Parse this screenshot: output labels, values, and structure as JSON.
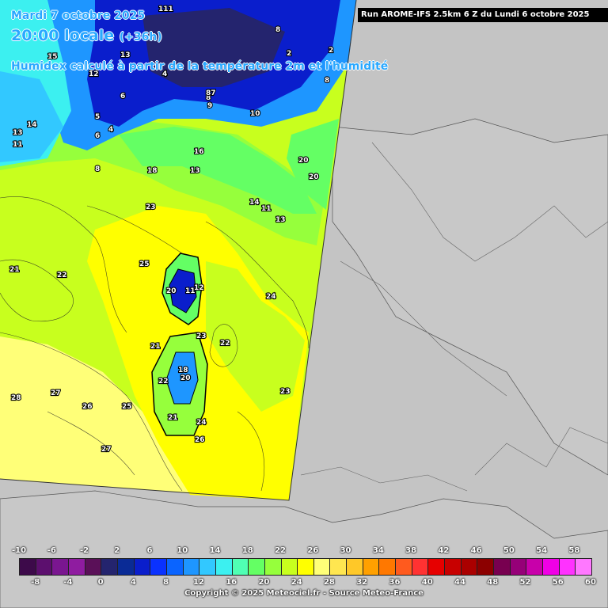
{
  "header": {
    "run_info": "Run AROME-IFS 2.5km 6 Z du Lundi 6 octobre 2025",
    "date": "Mardi 7 octobre 2025",
    "time": "20:00 locale",
    "offset": "(+36h)",
    "description": "Humidex calculé à partir de la température 2m et l'humidité"
  },
  "map_labels": [
    "111",
    "8",
    "2",
    "8",
    "15",
    "13",
    "12",
    "4",
    "6",
    "8",
    "2",
    "87",
    "9",
    "10",
    "14",
    "13",
    "11",
    "5",
    "4",
    "6",
    "16",
    "20",
    "20",
    "8",
    "13",
    "23",
    "18",
    "11",
    "13",
    "14",
    "21",
    "25",
    "22",
    "24",
    "21",
    "20",
    "11",
    "12",
    "23",
    "22",
    "24",
    "18",
    "22",
    "20",
    "28",
    "27",
    "26",
    "25",
    "21",
    "26",
    "27",
    "23"
  ],
  "legend": {
    "top_ticks": [
      "-10",
      "-6",
      "-2",
      "2",
      "6",
      "10",
      "14",
      "18",
      "22",
      "26",
      "30",
      "34",
      "38",
      "42",
      "46",
      "50",
      "54",
      "58"
    ],
    "bottom_ticks": [
      "-8",
      "-4",
      "0",
      "4",
      "8",
      "12",
      "16",
      "20",
      "24",
      "28",
      "32",
      "36",
      "40",
      "44",
      "48",
      "52",
      "56",
      "60"
    ],
    "colors": [
      "#3d0a4a",
      "#5c0f6e",
      "#7a1690",
      "#8f1ca0",
      "#5a1058",
      "#24246e",
      "#0a2b96",
      "#0a1ecc",
      "#0a32ff",
      "#0a64ff",
      "#1e96ff",
      "#32c8ff",
      "#3cf0f0",
      "#50ffb4",
      "#64ff64",
      "#96ff3c",
      "#c8ff1e",
      "#ffff00",
      "#ffff78",
      "#ffe650",
      "#ffc828",
      "#ffa000",
      "#ff7800",
      "#ff5a1e",
      "#ff3232",
      "#e60000",
      "#c80000",
      "#aa0000",
      "#8c0000",
      "#780050",
      "#960078",
      "#c800aa",
      "#f000e6",
      "#ff32ff",
      "#ff78ff"
    ]
  },
  "copyright": "Copyright © 2025 Meteociel.fr - Source Meteo-France"
}
